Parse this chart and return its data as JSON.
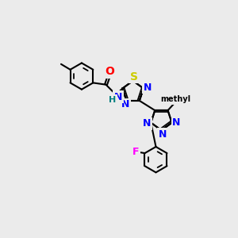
{
  "background_color": "#ebebeb",
  "atom_colors": {
    "C": "#000000",
    "N": "#0000ff",
    "O": "#ff0000",
    "S": "#cccc00",
    "F": "#ff00ff",
    "H": "#008080"
  },
  "bond_color": "#000000",
  "bond_width": 1.5,
  "font_size_atoms": 9,
  "font_size_small": 8
}
